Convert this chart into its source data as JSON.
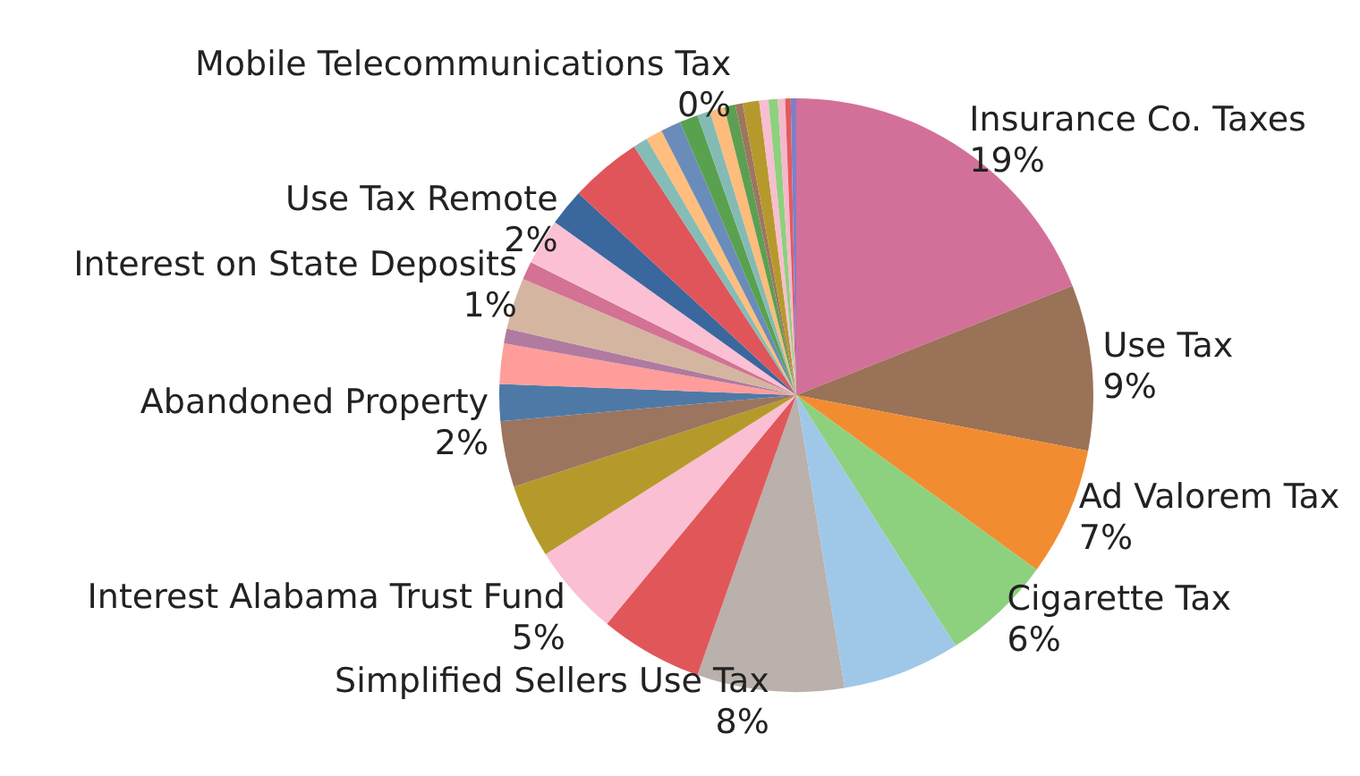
{
  "chart_data": {
    "type": "pie",
    "categories": [
      "Insurance Co. Taxes",
      "Use Tax",
      "Ad Valorem Tax",
      "Cigarette Tax",
      null,
      "Simplified Sellers Use Tax",
      null,
      "Interest Alabama Trust Fund",
      null,
      null,
      "Abandoned Property",
      null,
      null,
      null,
      "Interest on State Deposits",
      null,
      "Use Tax Remote",
      null,
      null,
      null,
      null,
      null,
      null,
      null,
      null,
      "Mobile Telecommunications Tax",
      null,
      null,
      null,
      null,
      null,
      null
    ],
    "values": [
      19,
      9,
      7,
      6,
      6.4,
      8,
      5.6,
      5,
      4,
      3.6,
      2,
      2.2,
      0.8,
      2.8,
      1,
      2.5,
      2,
      3.9,
      0.8,
      0.9,
      1.1,
      1.0,
      0.7,
      0.8,
      0.6,
      0.4,
      0.9,
      0.5,
      0.5,
      0.4,
      0.3,
      0.3
    ],
    "value_labels": [
      "19%",
      "9%",
      "7%",
      "6%",
      null,
      "8%",
      null,
      "5%",
      null,
      null,
      "2%",
      null,
      null,
      null,
      "1%",
      null,
      "2%",
      null,
      null,
      null,
      null,
      null,
      null,
      null,
      null,
      "0%",
      null,
      null,
      null,
      null,
      null,
      null
    ],
    "colors": [
      "#d3709a",
      "#9a7257",
      "#f28c30",
      "#8dd17e",
      "#9fc8e8",
      "#bab0ac",
      "#e15759",
      "#fabfd2",
      "#b59a2b",
      "#9c755f",
      "#4e79a7",
      "#ff9d9a",
      "#b07aa1",
      "#d4b5a0",
      "#d37295",
      "#fbc0d4",
      "#3a679e",
      "#e0555a",
      "#86bcb6",
      "#ffbe7d",
      "#6a8cba",
      "#59a14f",
      "#84bab4",
      "#fdbc7b",
      "#5c9f52",
      "#9d7660",
      "#b6992d",
      "#f8bdd0",
      "#8cd17d",
      "#f4b8cc",
      "#e35a5c",
      "#7f7fc8"
    ]
  }
}
